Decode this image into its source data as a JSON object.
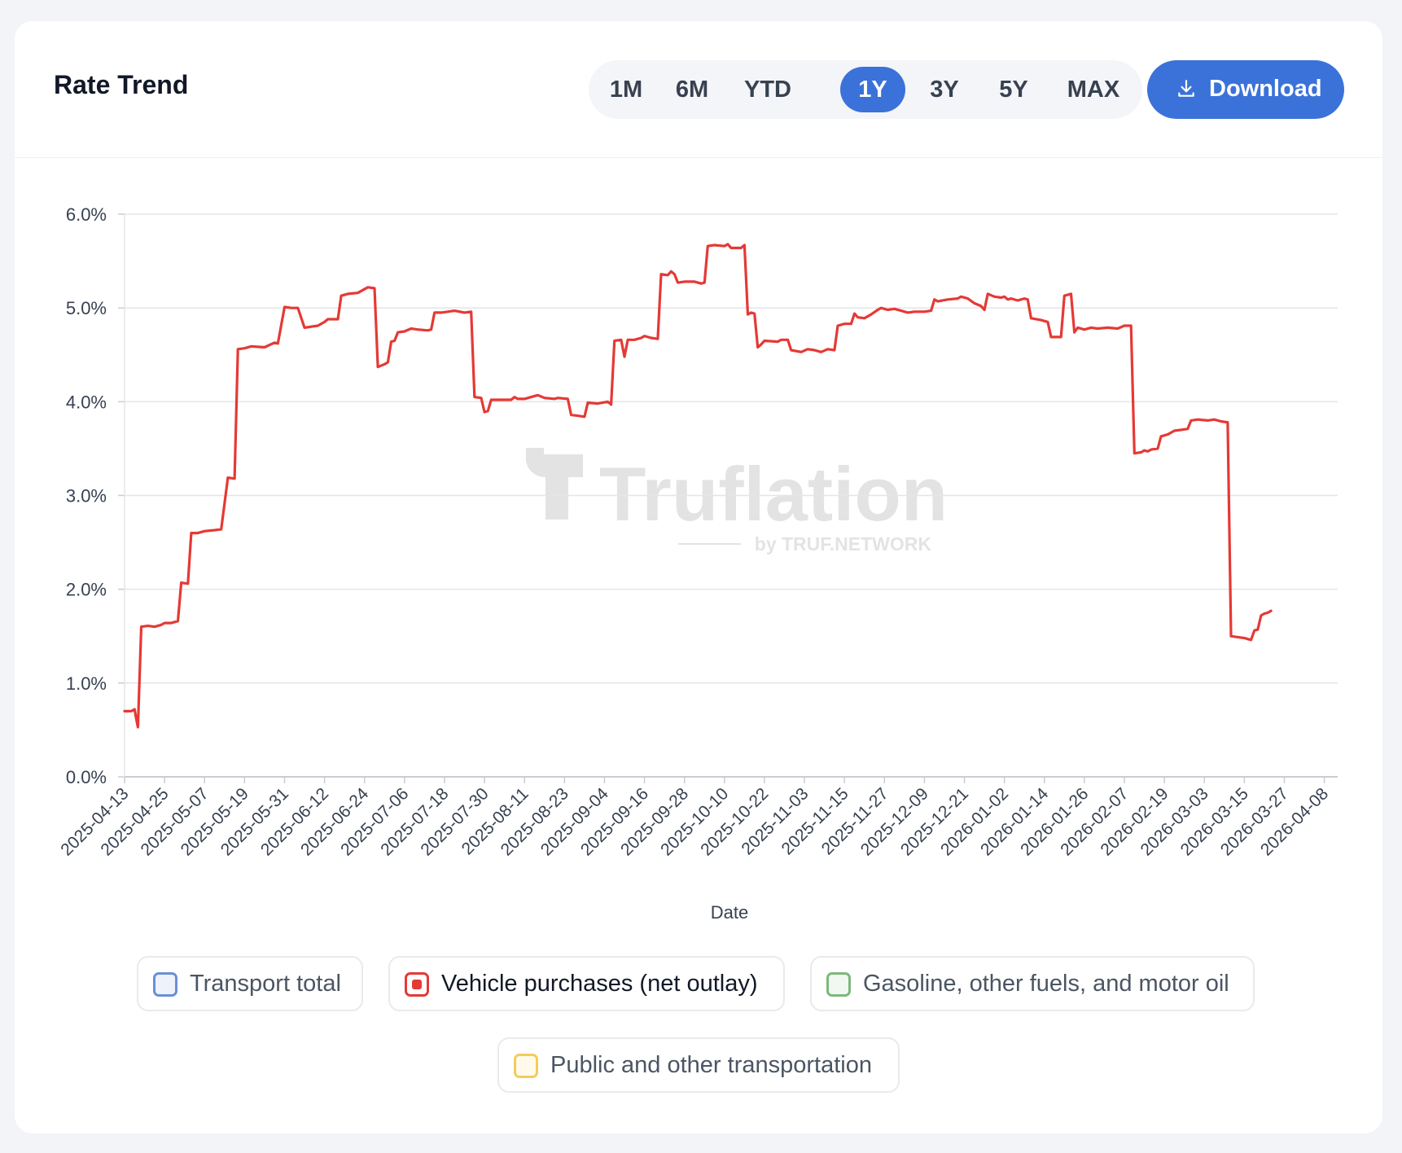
{
  "header": {
    "title": "Rate Trend",
    "download_label": "Download"
  },
  "ranges": [
    {
      "label": "1M",
      "active": false
    },
    {
      "label": "6M",
      "active": false
    },
    {
      "label": "YTD",
      "active": false
    },
    {
      "label": "1Y",
      "active": true
    },
    {
      "label": "3Y",
      "active": false
    },
    {
      "label": "5Y",
      "active": false
    },
    {
      "label": "MAX",
      "active": false
    }
  ],
  "colors": {
    "accent": "#3b72d9",
    "series_line": "#e53935"
  },
  "watermark": {
    "brand": "Truflation",
    "byline": "by TRUF.NETWORK"
  },
  "chart_data": {
    "type": "line",
    "title": "Rate Trend",
    "xlabel": "Date",
    "ylabel": "",
    "ylim": [
      0,
      6
    ],
    "y_ticks": [
      "0.0%",
      "1.0%",
      "2.0%",
      "3.0%",
      "4.0%",
      "5.0%",
      "6.0%"
    ],
    "x_start": "2025-04-13",
    "x_end": "2026-04-12",
    "x_ticks": [
      "2025-04-13",
      "2025-04-25",
      "2025-05-07",
      "2025-05-19",
      "2025-05-31",
      "2025-06-12",
      "2025-06-24",
      "2025-07-06",
      "2025-07-18",
      "2025-07-30",
      "2025-08-11",
      "2025-08-23",
      "2025-09-04",
      "2025-09-16",
      "2025-09-28",
      "2025-10-10",
      "2025-10-22",
      "2025-11-03",
      "2025-11-15",
      "2025-11-27",
      "2025-12-09",
      "2025-12-21",
      "2026-01-02",
      "2026-01-14",
      "2026-01-26",
      "2026-02-07",
      "2026-02-19",
      "2026-03-03",
      "2026-03-15",
      "2026-03-27",
      "2026-04-08"
    ],
    "grid": true,
    "legend": [
      {
        "name": "Transport total",
        "color": "#6b8fd6",
        "fill": "#eef2fb",
        "active": false
      },
      {
        "name": "Vehicle purchases (net outlay)",
        "color": "#e53935",
        "fill": "#e53935",
        "active": true
      },
      {
        "name": "Gasoline, other fuels, and motor oil",
        "color": "#7cb87c",
        "fill": "#f1f8f1",
        "active": false
      },
      {
        "name": "Public and other transportation",
        "color": "#f2cc5b",
        "fill": "#fffaea",
        "active": false
      }
    ],
    "series": [
      {
        "name": "Vehicle purchases (net outlay)",
        "points": [
          [
            0,
            0.7
          ],
          [
            2,
            0.7
          ],
          [
            3,
            0.72
          ],
          [
            3.5,
            0.62
          ],
          [
            4,
            0.53
          ],
          [
            5,
            1.6
          ],
          [
            7,
            1.61
          ],
          [
            9,
            1.6
          ],
          [
            11,
            1.62
          ],
          [
            12,
            1.64
          ],
          [
            14,
            1.64
          ],
          [
            16,
            1.66
          ],
          [
            17,
            2.07
          ],
          [
            19,
            2.06
          ],
          [
            20,
            2.6
          ],
          [
            22,
            2.6
          ],
          [
            24,
            2.62
          ],
          [
            27,
            2.63
          ],
          [
            29,
            2.64
          ],
          [
            31,
            3.19
          ],
          [
            33,
            3.18
          ],
          [
            34,
            4.56
          ],
          [
            36,
            4.57
          ],
          [
            38,
            4.59
          ],
          [
            42,
            4.58
          ],
          [
            45,
            4.63
          ],
          [
            46,
            4.62
          ],
          [
            48,
            5.01
          ],
          [
            50,
            5.0
          ],
          [
            52,
            5.0
          ],
          [
            54,
            4.79
          ],
          [
            56,
            4.8
          ],
          [
            58,
            4.81
          ],
          [
            60,
            4.85
          ],
          [
            61,
            4.88
          ],
          [
            64,
            4.88
          ],
          [
            65,
            5.13
          ],
          [
            67,
            5.15
          ],
          [
            70,
            5.16
          ],
          [
            73,
            5.22
          ],
          [
            75,
            5.21
          ],
          [
            76,
            4.37
          ],
          [
            78,
            4.4
          ],
          [
            79,
            4.42
          ],
          [
            80,
            4.64
          ],
          [
            81,
            4.65
          ],
          [
            82,
            4.74
          ],
          [
            84,
            4.75
          ],
          [
            86,
            4.78
          ],
          [
            88,
            4.77
          ],
          [
            91,
            4.76
          ],
          [
            92,
            4.77
          ],
          [
            93,
            4.95
          ],
          [
            95,
            4.95
          ],
          [
            97,
            4.96
          ],
          [
            99,
            4.97
          ],
          [
            102,
            4.95
          ],
          [
            104,
            4.96
          ],
          [
            105,
            4.05
          ],
          [
            107,
            4.04
          ],
          [
            108,
            3.89
          ],
          [
            109,
            3.9
          ],
          [
            110,
            4.02
          ],
          [
            112,
            4.02
          ],
          [
            116,
            4.02
          ],
          [
            117,
            4.05
          ],
          [
            118,
            4.03
          ],
          [
            120,
            4.03
          ],
          [
            122,
            4.05
          ],
          [
            124,
            4.07
          ],
          [
            126,
            4.04
          ],
          [
            129,
            4.03
          ],
          [
            130,
            4.04
          ],
          [
            133,
            4.03
          ],
          [
            134,
            3.86
          ],
          [
            136,
            3.85
          ],
          [
            138,
            3.84
          ],
          [
            139,
            3.99
          ],
          [
            142,
            3.98
          ],
          [
            145,
            4.0
          ],
          [
            146,
            3.97
          ],
          [
            147,
            4.65
          ],
          [
            149,
            4.66
          ],
          [
            150,
            4.48
          ],
          [
            151,
            4.66
          ],
          [
            153,
            4.66
          ],
          [
            155,
            4.68
          ],
          [
            156,
            4.7
          ],
          [
            158,
            4.68
          ],
          [
            160,
            4.67
          ],
          [
            161,
            5.36
          ],
          [
            163,
            5.35
          ],
          [
            164,
            5.39
          ],
          [
            165,
            5.36
          ],
          [
            166,
            5.27
          ],
          [
            168,
            5.28
          ],
          [
            171,
            5.28
          ],
          [
            173,
            5.26
          ],
          [
            174,
            5.27
          ],
          [
            175,
            5.66
          ],
          [
            177,
            5.67
          ],
          [
            180,
            5.66
          ],
          [
            181,
            5.68
          ],
          [
            182,
            5.64
          ],
          [
            185,
            5.64
          ],
          [
            186,
            5.67
          ],
          [
            187,
            4.93
          ],
          [
            188,
            4.95
          ],
          [
            189,
            4.94
          ],
          [
            190,
            4.58
          ],
          [
            191,
            4.61
          ],
          [
            192,
            4.65
          ],
          [
            196,
            4.64
          ],
          [
            197,
            4.66
          ],
          [
            199,
            4.66
          ],
          [
            200,
            4.55
          ],
          [
            203,
            4.53
          ],
          [
            205,
            4.56
          ],
          [
            207,
            4.55
          ],
          [
            209,
            4.53
          ],
          [
            211,
            4.56
          ],
          [
            213,
            4.55
          ],
          [
            214,
            4.81
          ],
          [
            216,
            4.83
          ],
          [
            218,
            4.83
          ],
          [
            219,
            4.94
          ],
          [
            220,
            4.9
          ],
          [
            222,
            4.89
          ],
          [
            224,
            4.93
          ],
          [
            226,
            4.98
          ],
          [
            227,
            5.0
          ],
          [
            229,
            4.98
          ],
          [
            231,
            4.99
          ],
          [
            233,
            4.97
          ],
          [
            235,
            4.95
          ],
          [
            237,
            4.96
          ],
          [
            240,
            4.96
          ],
          [
            242,
            4.97
          ],
          [
            243,
            5.09
          ],
          [
            244,
            5.07
          ],
          [
            247,
            5.09
          ],
          [
            250,
            5.1
          ],
          [
            251,
            5.12
          ],
          [
            253,
            5.1
          ],
          [
            255,
            5.05
          ],
          [
            257,
            5.02
          ],
          [
            258,
            4.98
          ],
          [
            259,
            5.15
          ],
          [
            261,
            5.12
          ],
          [
            263,
            5.11
          ],
          [
            264,
            5.12
          ],
          [
            265,
            5.09
          ],
          [
            266,
            5.1
          ],
          [
            268,
            5.08
          ],
          [
            270,
            5.1
          ],
          [
            271,
            5.09
          ],
          [
            272,
            4.89
          ],
          [
            275,
            4.87
          ],
          [
            277,
            4.85
          ],
          [
            278,
            4.69
          ],
          [
            281,
            4.69
          ],
          [
            282,
            5.13
          ],
          [
            284,
            5.15
          ],
          [
            285,
            4.74
          ],
          [
            286,
            4.79
          ],
          [
            288,
            4.77
          ],
          [
            290,
            4.79
          ],
          [
            292,
            4.78
          ],
          [
            295,
            4.79
          ],
          [
            298,
            4.78
          ],
          [
            300,
            4.81
          ],
          [
            302,
            4.81
          ],
          [
            303,
            3.45
          ],
          [
            305,
            3.46
          ],
          [
            306,
            3.48
          ],
          [
            307,
            3.47
          ],
          [
            308,
            3.49
          ],
          [
            310,
            3.5
          ],
          [
            311,
            3.63
          ],
          [
            313,
            3.65
          ],
          [
            315,
            3.69
          ],
          [
            317,
            3.7
          ],
          [
            319,
            3.71
          ],
          [
            320,
            3.8
          ],
          [
            322,
            3.81
          ],
          [
            325,
            3.8
          ],
          [
            327,
            3.81
          ],
          [
            329,
            3.79
          ],
          [
            331,
            3.78
          ],
          [
            332,
            1.5
          ],
          [
            334,
            1.49
          ],
          [
            336,
            1.48
          ],
          [
            338,
            1.46
          ],
          [
            339,
            1.56
          ],
          [
            340,
            1.57
          ],
          [
            341,
            1.72
          ],
          [
            342,
            1.74
          ],
          [
            343,
            1.75
          ],
          [
            344,
            1.77
          ]
        ]
      }
    ]
  }
}
